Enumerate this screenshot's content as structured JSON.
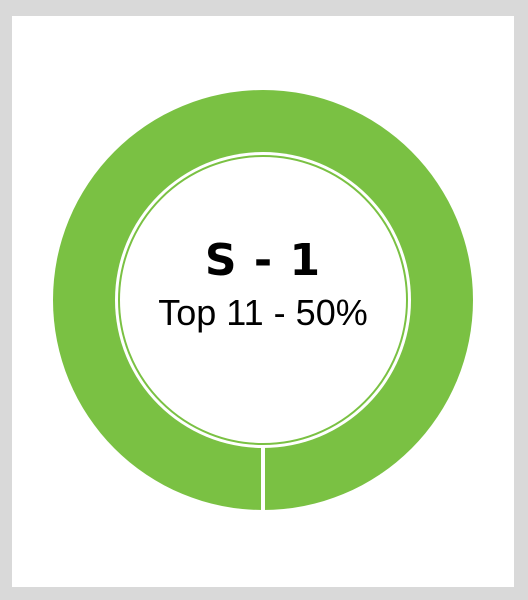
{
  "badge": {
    "title": "S - 1",
    "subtitle": "Top 11 - 50%",
    "ring_color": "#7ac143",
    "background_color": "#ffffff",
    "frame_color": "#d9d9d9"
  }
}
